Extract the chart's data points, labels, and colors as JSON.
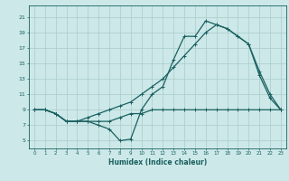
{
  "xlabel": "Humidex (Indice chaleur)",
  "bg_color": "#cce8e8",
  "grid_color": "#aacccc",
  "line_color": "#1a6060",
  "xlim": [
    -0.5,
    23.5
  ],
  "ylim": [
    4.0,
    22.5
  ],
  "xticks": [
    0,
    1,
    2,
    3,
    4,
    5,
    6,
    7,
    8,
    9,
    10,
    11,
    12,
    13,
    14,
    15,
    16,
    17,
    18,
    19,
    20,
    21,
    22,
    23
  ],
  "yticks": [
    5,
    7,
    9,
    11,
    13,
    15,
    17,
    19,
    21
  ],
  "line1_x": [
    0,
    1,
    2,
    3,
    4,
    5,
    6,
    7,
    8,
    9,
    10,
    11,
    12,
    13,
    14,
    15,
    16,
    17,
    18,
    19,
    20,
    21,
    22,
    23
  ],
  "line1_y": [
    9,
    9,
    8.5,
    7.5,
    7.5,
    7.5,
    7.0,
    6.5,
    5.0,
    5.2,
    9,
    11,
    12,
    15.5,
    18.5,
    18.5,
    20.5,
    20,
    19.5,
    18.5,
    17.5,
    13.5,
    10.5,
    9
  ],
  "line2_x": [
    0,
    1,
    2,
    3,
    4,
    5,
    6,
    7,
    8,
    9,
    10,
    11,
    12,
    13,
    14,
    15,
    16,
    17,
    18,
    19,
    20,
    21,
    22,
    23
  ],
  "line2_y": [
    9,
    9,
    8.5,
    7.5,
    7.5,
    7.5,
    7.5,
    7.5,
    8,
    8.5,
    8.5,
    9,
    9,
    9.0,
    9.0,
    9.0,
    9.0,
    9.0,
    9.0,
    9.0,
    9.0,
    9.0,
    9.0,
    9.0
  ],
  "line3_x": [
    0,
    1,
    2,
    3,
    4,
    5,
    6,
    7,
    8,
    9,
    10,
    11,
    12,
    13,
    14,
    15,
    16,
    17,
    18,
    19,
    20,
    21,
    22,
    23
  ],
  "line3_y": [
    9,
    9,
    8.5,
    7.5,
    7.5,
    8.0,
    8.5,
    9.0,
    9.5,
    10.0,
    11.0,
    12.0,
    13.0,
    14.5,
    16.0,
    17.5,
    19.0,
    20.0,
    19.5,
    18.5,
    17.5,
    14.0,
    11.0,
    9
  ]
}
